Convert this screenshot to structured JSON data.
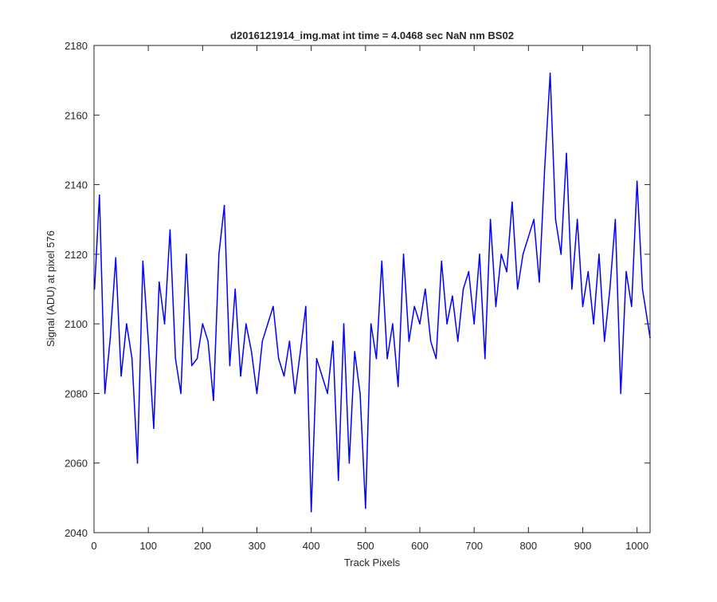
{
  "chart_data": {
    "type": "line",
    "title": "d2016121914_img.mat int time = 4.0468 sec  NaN nm BS02",
    "xlabel": "Track Pixels",
    "ylabel": "Signal (ADU) at pixel 576",
    "xlim": [
      0,
      1024
    ],
    "ylim": [
      2040,
      2180
    ],
    "xticks": [
      0,
      100,
      200,
      300,
      400,
      500,
      600,
      700,
      800,
      900,
      1000
    ],
    "yticks": [
      2040,
      2060,
      2080,
      2100,
      2120,
      2140,
      2160,
      2180
    ],
    "grid": false,
    "line_color": "#0000ff",
    "series": [
      {
        "x": [
          1,
          10,
          20,
          30,
          40,
          50,
          60,
          70,
          80,
          90,
          100,
          110,
          120,
          130,
          140,
          150,
          160,
          170,
          180,
          190,
          200,
          210,
          220,
          230,
          240,
          250,
          260,
          270,
          280,
          290,
          300,
          310,
          320,
          330,
          340,
          350,
          360,
          370,
          380,
          390,
          400,
          410,
          420,
          430,
          440,
          450,
          460,
          470,
          480,
          490,
          500,
          510,
          520,
          530,
          540,
          550,
          560,
          570,
          580,
          590,
          600,
          610,
          620,
          630,
          640,
          650,
          660,
          670,
          680,
          690,
          700,
          710,
          720,
          730,
          740,
          750,
          760,
          770,
          780,
          790,
          800,
          810,
          820,
          830,
          840,
          850,
          860,
          870,
          880,
          890,
          900,
          910,
          920,
          930,
          940,
          950,
          960,
          970,
          980,
          990,
          1000,
          1010,
          1024
        ],
        "values": [
          2110,
          2137,
          2080,
          2096,
          2119,
          2085,
          2100,
          2090,
          2060,
          2118,
          2095,
          2070,
          2112,
          2100,
          2127,
          2090,
          2080,
          2120,
          2088,
          2090,
          2100,
          2095,
          2078,
          2120,
          2134,
          2088,
          2110,
          2085,
          2100,
          2092,
          2080,
          2095,
          2100,
          2105,
          2090,
          2085,
          2095,
          2080,
          2092,
          2105,
          2046,
          2090,
          2085,
          2080,
          2095,
          2055,
          2100,
          2060,
          2092,
          2080,
          2047,
          2100,
          2090,
          2118,
          2090,
          2100,
          2082,
          2120,
          2095,
          2105,
          2100,
          2110,
          2095,
          2090,
          2118,
          2100,
          2108,
          2095,
          2110,
          2115,
          2100,
          2120,
          2090,
          2130,
          2105,
          2120,
          2115,
          2135,
          2110,
          2120,
          2125,
          2130,
          2112,
          2145,
          2172,
          2130,
          2120,
          2149,
          2110,
          2130,
          2105,
          2115,
          2100,
          2120,
          2095,
          2110,
          2130,
          2080,
          2115,
          2105,
          2141,
          2110,
          2096
        ]
      }
    ]
  }
}
